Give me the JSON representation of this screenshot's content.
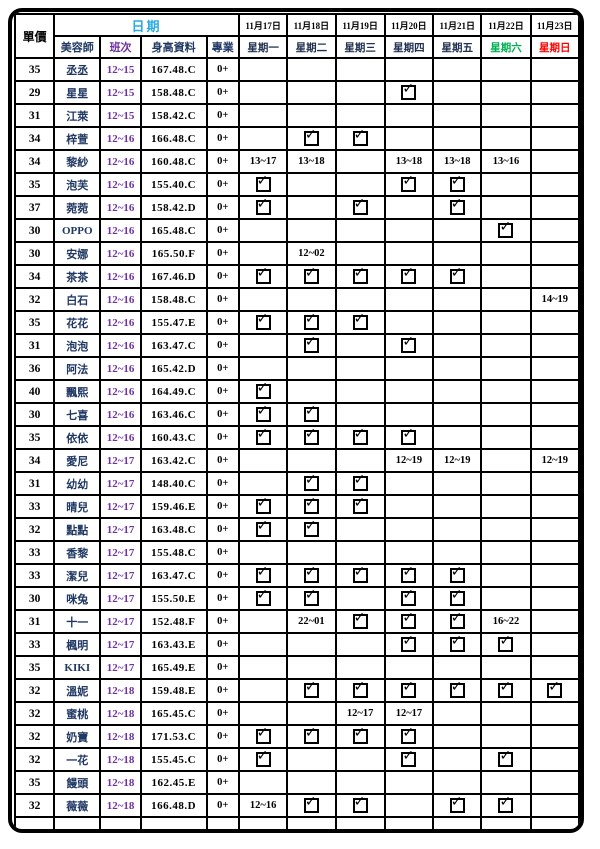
{
  "header": {
    "unit_price_label": "單價",
    "date_group_label": "日期",
    "columns": {
      "beautician": "美容師",
      "shift": "班次",
      "height_info": "身高資料",
      "profession": "專業"
    },
    "day_columns": [
      {
        "date": "11月17日",
        "weekday": "星期一",
        "type": "weekday"
      },
      {
        "date": "11月18日",
        "weekday": "星期二",
        "type": "weekday"
      },
      {
        "date": "11月19日",
        "weekday": "星期三",
        "type": "weekday"
      },
      {
        "date": "11月20日",
        "weekday": "星期四",
        "type": "weekday"
      },
      {
        "date": "11月21日",
        "weekday": "星期五",
        "type": "weekday"
      },
      {
        "date": "11月22日",
        "weekday": "星期六",
        "type": "saturday"
      },
      {
        "date": "11月23日",
        "weekday": "星期日",
        "type": "sunday"
      }
    ]
  },
  "colors": {
    "date_group": "#29ABE2",
    "name": "#203864",
    "shift": "#7030A0",
    "saturday": "#00B050",
    "sunday": "#FF0000",
    "border": "#000000"
  },
  "check_symbol_name": "checked-checkbox-icon",
  "rows": [
    {
      "price": "35",
      "name": "丞丞",
      "shift": "12~15",
      "height": "167.48.C",
      "pro": "0+",
      "days": [
        "",
        "",
        "",
        "",
        "",
        "",
        ""
      ]
    },
    {
      "price": "29",
      "name": "星星",
      "shift": "12~15",
      "height": "158.48.C",
      "pro": "0+",
      "days": [
        "",
        "",
        "",
        "CHK",
        "",
        "",
        ""
      ]
    },
    {
      "price": "31",
      "name": "江萊",
      "shift": "12~15",
      "height": "158.42.C",
      "pro": "0+",
      "days": [
        "",
        "",
        "",
        "",
        "",
        "",
        ""
      ]
    },
    {
      "price": "34",
      "name": "梓萱",
      "shift": "12~16",
      "height": "166.48.C",
      "pro": "0+",
      "days": [
        "",
        "CHK",
        "CHK",
        "",
        "",
        "",
        ""
      ]
    },
    {
      "price": "34",
      "name": "黎紗",
      "shift": "12~16",
      "height": "160.48.C",
      "pro": "0+",
      "days": [
        "13~17",
        "13~18",
        "",
        "13~18",
        "13~18",
        "13~16",
        ""
      ]
    },
    {
      "price": "35",
      "name": "泡芙",
      "shift": "12~16",
      "height": "155.40.C",
      "pro": "0+",
      "days": [
        "CHK",
        "",
        "",
        "CHK",
        "CHK",
        "",
        ""
      ]
    },
    {
      "price": "37",
      "name": "菀菀",
      "shift": "12~16",
      "height": "158.42.D",
      "pro": "0+",
      "days": [
        "CHK",
        "",
        "CHK",
        "",
        "CHK",
        "",
        ""
      ]
    },
    {
      "price": "30",
      "name": "OPPO",
      "shift": "12~16",
      "height": "165.48.C",
      "pro": "0+",
      "days": [
        "",
        "",
        "",
        "",
        "",
        "CHK",
        ""
      ]
    },
    {
      "price": "30",
      "name": "安娜",
      "shift": "12~16",
      "height": "165.50.F",
      "pro": "0+",
      "days": [
        "",
        "12~02",
        "",
        "",
        "",
        "",
        ""
      ]
    },
    {
      "price": "34",
      "name": "茶茶",
      "shift": "12~16",
      "height": "167.46.D",
      "pro": "0+",
      "days": [
        "CHK",
        "CHK",
        "CHK",
        "CHK",
        "CHK",
        "",
        ""
      ]
    },
    {
      "price": "32",
      "name": "白石",
      "shift": "12~16",
      "height": "158.48.C",
      "pro": "0+",
      "days": [
        "",
        "",
        "",
        "",
        "",
        "",
        "14~19"
      ]
    },
    {
      "price": "35",
      "name": "花花",
      "shift": "12~16",
      "height": "155.47.E",
      "pro": "0+",
      "days": [
        "CHK",
        "CHK",
        "CHK",
        "",
        "",
        "",
        ""
      ]
    },
    {
      "price": "31",
      "name": "泡泡",
      "shift": "12~16",
      "height": "163.47.C",
      "pro": "0+",
      "days": [
        "",
        "CHK",
        "",
        "CHK",
        "",
        "",
        ""
      ]
    },
    {
      "price": "36",
      "name": "阿法",
      "shift": "12~16",
      "height": "165.42.D",
      "pro": "0+",
      "days": [
        "",
        "",
        "",
        "",
        "",
        "",
        ""
      ]
    },
    {
      "price": "40",
      "name": "飄熙",
      "shift": "12~16",
      "height": "164.49.C",
      "pro": "0+",
      "days": [
        "CHK",
        "",
        "",
        "",
        "",
        "",
        ""
      ]
    },
    {
      "price": "30",
      "name": "七喜",
      "shift": "12~16",
      "height": "163.46.C",
      "pro": "0+",
      "days": [
        "CHK",
        "CHK",
        "",
        "",
        "",
        "",
        ""
      ]
    },
    {
      "price": "35",
      "name": "依依",
      "shift": "12~16",
      "height": "160.43.C",
      "pro": "0+",
      "days": [
        "CHK",
        "CHK",
        "CHK",
        "CHK",
        "",
        "",
        ""
      ]
    },
    {
      "price": "34",
      "name": "愛尼",
      "shift": "12~17",
      "height": "163.42.C",
      "pro": "0+",
      "days": [
        "",
        "",
        "",
        "12~19",
        "12~19",
        "",
        "12~19"
      ]
    },
    {
      "price": "31",
      "name": "幼幼",
      "shift": "12~17",
      "height": "148.40.C",
      "pro": "0+",
      "days": [
        "",
        "CHK",
        "CHK",
        "",
        "",
        "",
        ""
      ]
    },
    {
      "price": "33",
      "name": "晴兒",
      "shift": "12~17",
      "height": "159.46.E",
      "pro": "0+",
      "days": [
        "CHK",
        "CHK",
        "CHK",
        "",
        "",
        "",
        ""
      ]
    },
    {
      "price": "32",
      "name": "點點",
      "shift": "12~17",
      "height": "163.48.C",
      "pro": "0+",
      "days": [
        "CHK",
        "CHK",
        "",
        "",
        "",
        "",
        ""
      ]
    },
    {
      "price": "33",
      "name": "香黎",
      "shift": "12~17",
      "height": "155.48.C",
      "pro": "0+",
      "days": [
        "",
        "",
        "",
        "",
        "",
        "",
        ""
      ]
    },
    {
      "price": "33",
      "name": "潔兒",
      "shift": "12~17",
      "height": "163.47.C",
      "pro": "0+",
      "days": [
        "CHK",
        "CHK",
        "CHK",
        "CHK",
        "CHK",
        "",
        ""
      ]
    },
    {
      "price": "30",
      "name": "咪兔",
      "shift": "12~17",
      "height": "155.50.E",
      "pro": "0+",
      "days": [
        "CHK",
        "CHK",
        "",
        "CHK",
        "CHK",
        "",
        ""
      ]
    },
    {
      "price": "31",
      "name": "十一",
      "shift": "12~17",
      "height": "152.48.F",
      "pro": "0+",
      "days": [
        "",
        "22~01",
        "CHK",
        "CHK",
        "CHK",
        "16~22",
        ""
      ]
    },
    {
      "price": "33",
      "name": "楓明",
      "shift": "12~17",
      "height": "163.43.E",
      "pro": "0+",
      "days": [
        "",
        "",
        "",
        "CHK",
        "CHK",
        "CHK",
        ""
      ]
    },
    {
      "price": "35",
      "name": "KIKI",
      "shift": "12~17",
      "height": "165.49.E",
      "pro": "0+",
      "days": [
        "",
        "",
        "",
        "",
        "",
        "",
        ""
      ]
    },
    {
      "price": "32",
      "name": "溫妮",
      "shift": "12~18",
      "height": "159.48.E",
      "pro": "0+",
      "days": [
        "",
        "CHK",
        "CHK",
        "CHK",
        "CHK",
        "CHK",
        "CHK"
      ]
    },
    {
      "price": "32",
      "name": "蜜桃",
      "shift": "12~18",
      "height": "165.45.C",
      "pro": "0+",
      "days": [
        "",
        "",
        "12~17",
        "12~17",
        "",
        "",
        ""
      ]
    },
    {
      "price": "32",
      "name": "奶寶",
      "shift": "12~18",
      "height": "171.53.C",
      "pro": "0+",
      "days": [
        "CHK",
        "CHK",
        "CHK",
        "CHK",
        "",
        "",
        ""
      ]
    },
    {
      "price": "32",
      "name": "一花",
      "shift": "12~18",
      "height": "155.45.C",
      "pro": "0+",
      "days": [
        "CHK",
        "",
        "",
        "CHK",
        "",
        "CHK",
        ""
      ]
    },
    {
      "price": "35",
      "name": "饅頭",
      "shift": "12~18",
      "height": "162.45.E",
      "pro": "0+",
      "days": [
        "",
        "",
        "",
        "",
        "",
        "",
        ""
      ]
    },
    {
      "price": "32",
      "name": "薇薇",
      "shift": "12~18",
      "height": "166.48.D",
      "pro": "0+",
      "days": [
        "12~16",
        "CHK",
        "CHK",
        "",
        "CHK",
        "CHK",
        ""
      ]
    },
    {
      "price": "",
      "name": "",
      "shift": "",
      "height": "",
      "pro": "",
      "days": [
        "",
        "",
        "",
        "",
        "",
        "",
        ""
      ]
    }
  ]
}
